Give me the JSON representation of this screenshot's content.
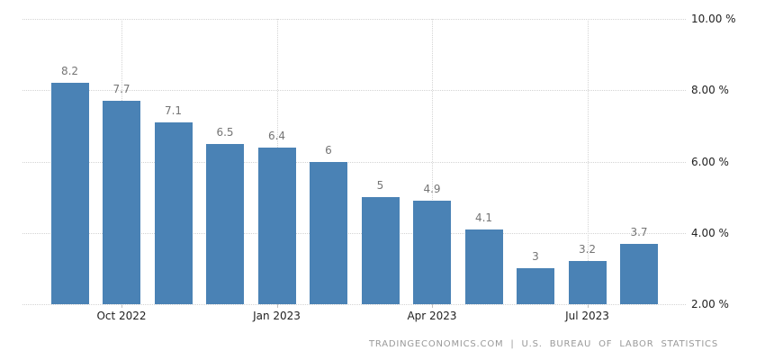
{
  "chart_data": {
    "type": "bar",
    "title": "",
    "xlabel": "",
    "ylabel": "",
    "values": [
      8.2,
      7.7,
      7.1,
      6.5,
      6.4,
      6,
      5,
      4.9,
      4.1,
      3,
      3.2,
      3.7
    ],
    "bar_labels": [
      "8.2",
      "7.7",
      "7.1",
      "6.5",
      "6.4",
      "6",
      "5",
      "4.9",
      "4.1",
      "3",
      "3.2",
      "3.7"
    ],
    "x_tick_labels": [
      {
        "bar_index": 1,
        "label": "Oct 2022"
      },
      {
        "bar_index": 4,
        "label": "Jan 2023"
      },
      {
        "bar_index": 7,
        "label": "Apr 2023"
      },
      {
        "bar_index": 10,
        "label": "Jul 2023"
      }
    ],
    "y_tick_labels": [
      "10.00 %",
      "8.00 %",
      "6.00 %",
      "4.00 %",
      "2.00 %"
    ],
    "y_tick_values": [
      10,
      8,
      6,
      4,
      2
    ],
    "ylim": [
      2,
      10
    ],
    "grid": true,
    "legend": "none",
    "colors": {
      "bar": "#4a82b5",
      "bar_label": "#757575",
      "axis_text": "#222222",
      "grid": "#d4d4d4",
      "tick": "#c0c0c0",
      "footer": "#999999"
    }
  },
  "footer": {
    "source_text": "TRADINGECONOMICS.COM | U.S. BUREAU OF LABOR STATISTICS"
  }
}
